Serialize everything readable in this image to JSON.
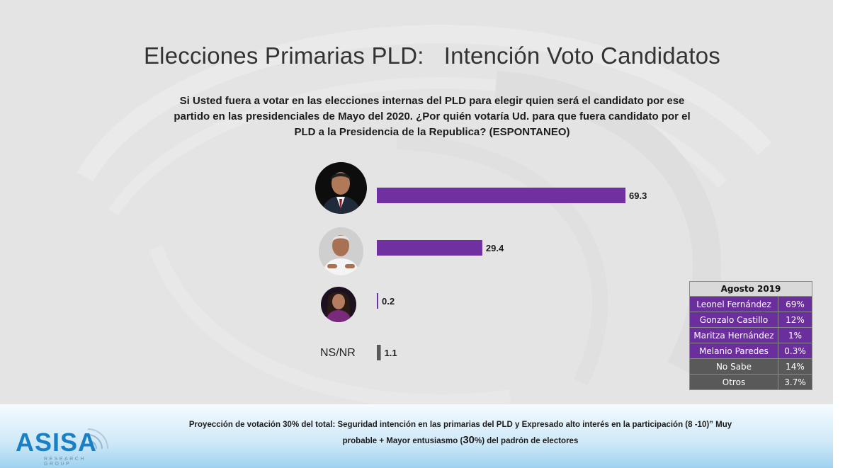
{
  "slide": {
    "title_left": "Elecciones Primarias PLD:",
    "title_right": "Intención Voto Candidatos",
    "question_line1": "Si Usted fuera a votar en las elecciones internas del PLD para elegir quien será el candidato por ese",
    "question_line2": "partido en las presidenciales de Mayo del 2020. ¿Por quién votaría Ud. para que fuera candidato por el",
    "question_line3": "PLD a la Presidencia de la Republica?  (ESPONTANEO)"
  },
  "chart_data": {
    "type": "bar",
    "orientation": "horizontal",
    "categories": [
      "",
      "",
      "",
      "NS/NR"
    ],
    "values": [
      69.3,
      29.4,
      0.2,
      1.1
    ],
    "value_labels": [
      "69.3",
      "29.4",
      "0.2",
      "1.1"
    ],
    "colors": [
      "#7030a0",
      "#7030a0",
      "#7030a0",
      "#595959"
    ],
    "xlim": [
      0,
      69.3
    ],
    "grid": false,
    "title": "",
    "xlabel": "",
    "ylabel": ""
  },
  "nsnr_label": "NS/NR",
  "side_table": {
    "header": "Agosto 2019",
    "rows": [
      {
        "name": "Leonel Fernández",
        "value": "69%"
      },
      {
        "name": "Gonzalo Castillo",
        "value": "12%"
      },
      {
        "name": "Maritza Hernández",
        "value": "1%"
      },
      {
        "name": "Melanio Paredes",
        "value": "0.3%"
      },
      {
        "name": "No Sabe",
        "value": "14%"
      },
      {
        "name": "Otros",
        "value": "3.7%"
      }
    ]
  },
  "footer": {
    "line1": "Proyección de votación 30% del total: Seguridad intención en las  primarias del PLD y  Expresado alto interés en la participación (8 -10)”   Muy",
    "line2_a": "probable  + Mayor entusiasmo (",
    "line2_big": "30",
    "line2_b": "%) del padrón de electores"
  },
  "logo": {
    "name": "ASISA",
    "subtitle": "RESEARCH GROUP"
  },
  "colors": {
    "accent_purple": "#7030a0",
    "dark_gray": "#595959",
    "logo_blue": "#1a7fc3"
  }
}
